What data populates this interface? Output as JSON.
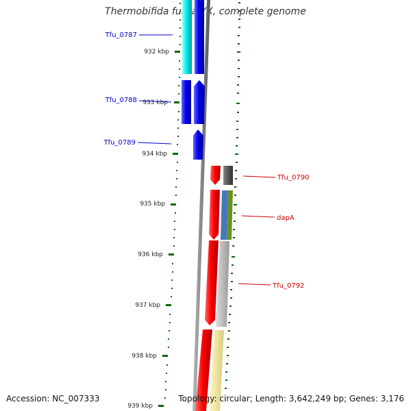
{
  "title": "Thermobifida fusca YX, complete genome",
  "footer": {
    "accession": "Accession: NC_007333",
    "topology": "Topology: circular; Length: 3,642,249 bp; Genes: 3,176"
  },
  "colors": {
    "forward_cds": "#0000ee",
    "forward_cds_light": "#00f0f0",
    "reverse_cds": "#ff0000",
    "tick": "#006600",
    "backbone": "#888888",
    "forward_label": "#0000cc",
    "reverse_label": "#cc0000",
    "orf_dark": "#555555",
    "orf_blue": "#4477bb",
    "orf_olive": "#6b8e23",
    "orf_gray": "#bbbbbb",
    "orf_yellow": "#eee4a0"
  },
  "ruler": {
    "ticks": [
      {
        "kbp": 932,
        "label": "932 kbp"
      },
      {
        "kbp": 933,
        "label": "933 kbp"
      },
      {
        "kbp": 934,
        "label": "934 kbp"
      },
      {
        "kbp": 935,
        "label": "935 kbp"
      },
      {
        "kbp": 936,
        "label": "936 kbp"
      },
      {
        "kbp": 937,
        "label": "937 kbp"
      },
      {
        "kbp": 938,
        "label": "938 kbp"
      },
      {
        "kbp": 939,
        "label": "939 kbp"
      }
    ]
  },
  "genes": [
    {
      "name": "Tfu_0787",
      "strand": "forward"
    },
    {
      "name": "Tfu_0788",
      "strand": "forward"
    },
    {
      "name": "Tfu_0789",
      "strand": "forward"
    },
    {
      "name": "Tfu_0790",
      "strand": "reverse"
    },
    {
      "name": "dapA",
      "strand": "reverse"
    },
    {
      "name": "Tfu_0792",
      "strand": "reverse"
    }
  ]
}
